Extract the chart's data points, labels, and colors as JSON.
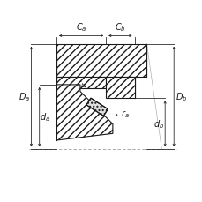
{
  "bg_color": "#ffffff",
  "line_color": "#1a1a1a",
  "fig_width": 2.3,
  "fig_height": 2.3,
  "dpi": 100
}
